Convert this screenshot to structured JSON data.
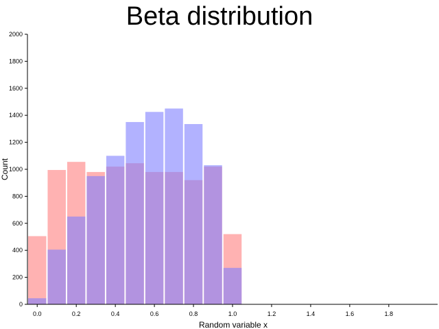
{
  "chart_data": {
    "type": "bar",
    "title": "Beta distribution",
    "xlabel": "Random variable x",
    "ylabel": "Count",
    "xlim": [
      -0.05,
      2.05
    ],
    "ylim": [
      0,
      2000
    ],
    "x_ticks": [
      "0.0",
      "0.2",
      "0.4",
      "0.6",
      "0.8",
      "1.0",
      "1.2",
      "1.4",
      "1.6",
      "1.8"
    ],
    "y_ticks": [
      "0",
      "200",
      "400",
      "600",
      "800",
      "1000",
      "1200",
      "1400",
      "1600",
      "1800",
      "2000"
    ],
    "bin_edges": [
      -0.05,
      0.05,
      0.15,
      0.25,
      0.35,
      0.45,
      0.55,
      0.65,
      0.75,
      0.85,
      0.95,
      1.05
    ],
    "grid": false,
    "series": [
      {
        "color": "#ff7f7f",
        "values": [
          505,
          995,
          1055,
          980,
          1020,
          1045,
          980,
          980,
          920,
          1020,
          520
        ]
      },
      {
        "color": "#7f7fff",
        "values": [
          45,
          405,
          650,
          950,
          1100,
          1350,
          1425,
          1450,
          1335,
          1030,
          270
        ]
      }
    ]
  }
}
